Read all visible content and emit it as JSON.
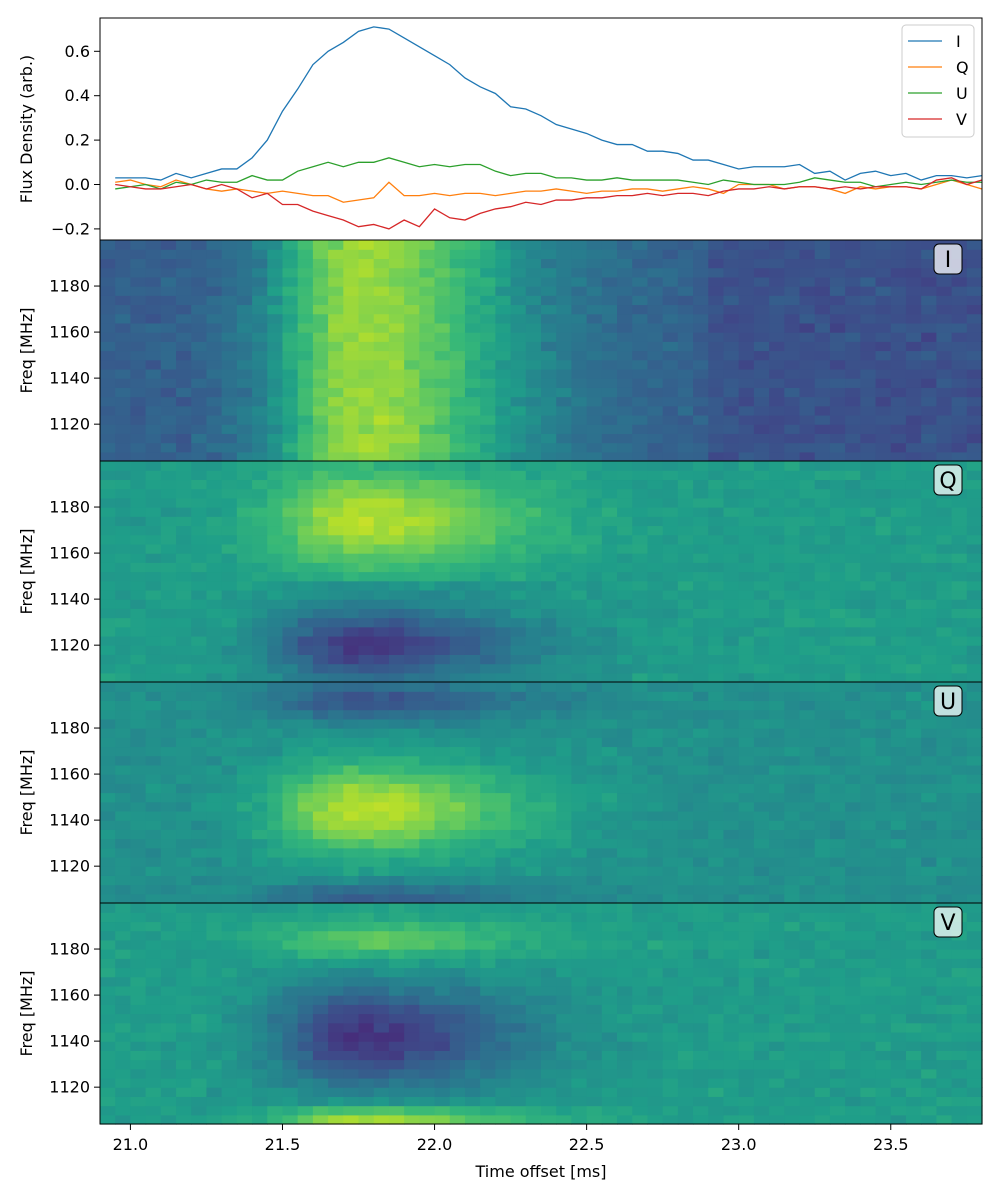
{
  "chart_data": [
    {
      "type": "line",
      "panel": "profile",
      "ylabel": "Flux Density (arb.)",
      "ylim": [
        -0.25,
        0.75
      ],
      "yticks": [
        -0.2,
        0.0,
        0.2,
        0.4,
        0.6
      ],
      "ytick_labels": [
        "−0.2",
        "0.0",
        "0.2",
        "0.4",
        "0.6"
      ],
      "xlim": [
        20.9,
        23.8
      ],
      "legend_placement": "top-right",
      "series": [
        {
          "name": "I",
          "color": "#1f77b4",
          "values": [
            0.03,
            0.03,
            0.03,
            0.02,
            0.05,
            0.03,
            0.05,
            0.07,
            0.07,
            0.12,
            0.2,
            0.33,
            0.43,
            0.54,
            0.6,
            0.64,
            0.69,
            0.71,
            0.7,
            0.66,
            0.62,
            0.58,
            0.54,
            0.48,
            0.44,
            0.41,
            0.35,
            0.34,
            0.31,
            0.27,
            0.25,
            0.23,
            0.2,
            0.18,
            0.18,
            0.15,
            0.15,
            0.14,
            0.11,
            0.11,
            0.09,
            0.07,
            0.08,
            0.08,
            0.08,
            0.09,
            0.05,
            0.06,
            0.02,
            0.05,
            0.06,
            0.04,
            0.05,
            0.02,
            0.04,
            0.04,
            0.03,
            0.04
          ]
        },
        {
          "name": "Q",
          "color": "#ff7f0e",
          "values": [
            0.01,
            0.02,
            0.0,
            -0.01,
            0.02,
            0.0,
            -0.02,
            -0.03,
            -0.02,
            -0.03,
            -0.04,
            -0.03,
            -0.04,
            -0.05,
            -0.05,
            -0.08,
            -0.07,
            -0.06,
            0.01,
            -0.05,
            -0.05,
            -0.04,
            -0.05,
            -0.04,
            -0.04,
            -0.05,
            -0.04,
            -0.03,
            -0.03,
            -0.02,
            -0.03,
            -0.04,
            -0.03,
            -0.03,
            -0.02,
            -0.02,
            -0.03,
            -0.02,
            -0.01,
            -0.02,
            -0.04,
            0.0,
            0.0,
            0.0,
            -0.02,
            -0.01,
            -0.01,
            -0.02,
            -0.04,
            -0.01,
            -0.02,
            -0.01,
            -0.01,
            -0.02,
            0.0,
            0.02,
            0.0,
            -0.02
          ]
        },
        {
          "name": "U",
          "color": "#2ca02c",
          "values": [
            -0.02,
            -0.01,
            0.0,
            -0.02,
            0.01,
            0.0,
            0.02,
            0.01,
            0.01,
            0.04,
            0.02,
            0.02,
            0.06,
            0.08,
            0.1,
            0.08,
            0.1,
            0.1,
            0.12,
            0.1,
            0.08,
            0.09,
            0.08,
            0.09,
            0.09,
            0.06,
            0.04,
            0.05,
            0.05,
            0.03,
            0.03,
            0.02,
            0.02,
            0.03,
            0.02,
            0.02,
            0.02,
            0.02,
            0.01,
            0.0,
            0.02,
            0.01,
            0.0,
            0.0,
            0.0,
            0.01,
            0.03,
            0.02,
            0.01,
            0.01,
            -0.01,
            0.0,
            0.01,
            0.0,
            0.01,
            0.02,
            0.01,
            0.01
          ]
        },
        {
          "name": "V",
          "color": "#d62728",
          "values": [
            0.0,
            -0.01,
            -0.02,
            -0.02,
            -0.01,
            0.0,
            -0.02,
            0.0,
            -0.02,
            -0.06,
            -0.04,
            -0.09,
            -0.09,
            -0.12,
            -0.14,
            -0.16,
            -0.19,
            -0.18,
            -0.2,
            -0.16,
            -0.19,
            -0.11,
            -0.15,
            -0.16,
            -0.13,
            -0.11,
            -0.1,
            -0.08,
            -0.09,
            -0.07,
            -0.07,
            -0.06,
            -0.06,
            -0.05,
            -0.05,
            -0.04,
            -0.05,
            -0.04,
            -0.04,
            -0.05,
            -0.03,
            -0.02,
            -0.02,
            -0.01,
            -0.02,
            -0.01,
            -0.01,
            -0.02,
            -0.01,
            -0.02,
            -0.01,
            -0.01,
            -0.01,
            -0.02,
            0.02,
            0.03,
            0.0,
            0.02
          ]
        }
      ]
    },
    {
      "type": "heatmap",
      "panel": "I",
      "label": "I",
      "ylabel": "Freq [MHz]",
      "ylim": [
        1104,
        1200
      ],
      "yticks": [
        1120,
        1140,
        1160,
        1180
      ],
      "colormap": "viridis",
      "description_values": "dynamic spectrum; bright emission 21.5–22.1 ms, strongest at lower frequencies"
    },
    {
      "type": "heatmap",
      "panel": "Q",
      "label": "Q",
      "ylabel": "Freq [MHz]",
      "ylim": [
        1104,
        1200
      ],
      "yticks": [
        1120,
        1140,
        1160,
        1180
      ],
      "colormap": "viridis"
    },
    {
      "type": "heatmap",
      "panel": "U",
      "label": "U",
      "ylabel": "Freq [MHz]",
      "ylim": [
        1104,
        1200
      ],
      "yticks": [
        1120,
        1140,
        1160,
        1180
      ],
      "colormap": "viridis"
    },
    {
      "type": "heatmap",
      "panel": "V",
      "label": "V",
      "ylabel": "Freq [MHz]",
      "ylim": [
        1104,
        1200
      ],
      "yticks": [
        1120,
        1140,
        1160,
        1180
      ],
      "colormap": "viridis",
      "xlabel": "Time offset [ms]",
      "xlim": [
        20.9,
        23.8
      ],
      "xticks": [
        21.0,
        21.5,
        22.0,
        22.5,
        23.0,
        23.5
      ],
      "xtick_labels": [
        "21.0",
        "21.5",
        "22.0",
        "22.5",
        "23.0",
        "23.5"
      ]
    }
  ]
}
